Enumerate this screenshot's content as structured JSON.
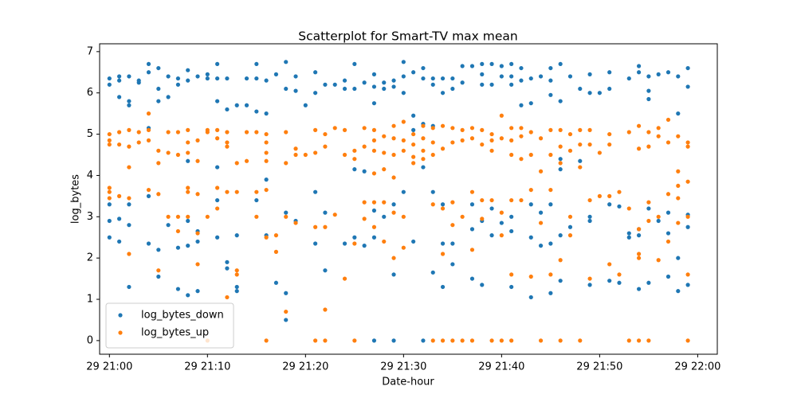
{
  "chart_data": {
    "type": "scatter",
    "title": "Scatterplot for Smart-TV max mean",
    "x_label": "Date-hour",
    "y_label": "log_bytes",
    "xlim": [
      "29 20:59",
      "29 22:02"
    ],
    "xticks": [
      "29 21:00",
      "29 21:10",
      "29 21:20",
      "29 21:30",
      "29 21:40",
      "29 21:50",
      "29 22:00"
    ],
    "ylim": [
      -0.33,
      7.19
    ],
    "yticks": [
      0,
      1,
      2,
      3,
      4,
      5,
      6,
      7
    ],
    "grid": false,
    "legend": "lower left",
    "series": [
      {
        "name": "log_bytes_down",
        "color": "#1f77b4",
        "x": [
          "29 21:00",
          "29 21:00",
          "29 21:00",
          "29 21:00",
          "29 21:00",
          "29 21:01",
          "29 21:01",
          "29 21:01",
          "29 21:01",
          "29 21:01",
          "29 21:02",
          "29 21:02",
          "29 21:02",
          "29 21:02",
          "29 21:02",
          "29 21:02",
          "29 21:03",
          "29 21:03",
          "29 21:04",
          "29 21:04",
          "29 21:04",
          "29 21:04",
          "29 21:04",
          "29 21:05",
          "29 21:05",
          "29 21:05",
          "29 21:05",
          "29 21:05",
          "29 21:06",
          "29 21:06",
          "29 21:06",
          "29 21:07",
          "29 21:07",
          "29 21:07",
          "29 21:07",
          "29 21:08",
          "29 21:08",
          "29 21:08",
          "29 21:08",
          "29 21:08",
          "29 21:08",
          "29 21:09",
          "29 21:09",
          "29 21:09",
          "29 21:09",
          "29 21:10",
          "29 21:10",
          "29 21:11",
          "29 21:11",
          "29 21:11",
          "29 21:11",
          "29 21:11",
          "29 21:11",
          "29 21:12",
          "29 21:12",
          "29 21:12",
          "29 21:12",
          "29 21:13",
          "29 21:13",
          "29 21:13",
          "29 21:13",
          "29 21:14",
          "29 21:14",
          "29 21:15",
          "29 21:15",
          "29 21:15",
          "29 21:15",
          "29 21:16",
          "29 21:16",
          "29 21:16",
          "29 21:16",
          "29 21:17",
          "29 21:17",
          "29 21:18",
          "29 21:18",
          "29 21:18",
          "29 21:18",
          "29 21:18",
          "29 21:19",
          "29 21:19",
          "29 21:19",
          "29 21:20",
          "29 21:21",
          "29 21:21",
          "29 21:21",
          "29 21:21",
          "29 21:22",
          "29 21:22",
          "29 21:22",
          "29 21:23",
          "29 21:24",
          "29 21:24",
          "29 21:24",
          "29 21:25",
          "29 21:25",
          "29 21:25",
          "29 21:25",
          "29 21:26",
          "29 21:26",
          "29 21:26",
          "29 21:27",
          "29 21:27",
          "29 21:27",
          "29 21:27",
          "29 21:27",
          "29 21:27",
          "29 21:28",
          "29 21:28",
          "29 21:28",
          "29 21:29",
          "29 21:29",
          "29 21:29",
          "29 21:29",
          "29 21:29",
          "29 21:30",
          "29 21:30",
          "29 21:30",
          "29 21:30",
          "29 21:31",
          "29 21:31",
          "29 21:31",
          "29 21:31",
          "29 21:32",
          "29 21:32",
          "29 21:32",
          "29 21:32",
          "29 21:32",
          "29 21:33",
          "29 21:33",
          "29 21:33",
          "29 21:33",
          "29 21:33",
          "29 21:34",
          "29 21:34",
          "29 21:34",
          "29 21:34",
          "29 21:34",
          "29 21:35",
          "29 21:35",
          "29 21:35",
          "29 21:35",
          "29 21:36",
          "29 21:36",
          "29 21:37",
          "29 21:37",
          "29 21:37",
          "29 21:37",
          "29 21:38",
          "29 21:38",
          "29 21:38",
          "29 21:38",
          "29 21:38",
          "29 21:39",
          "29 21:39",
          "29 21:39",
          "29 21:39",
          "29 21:40",
          "29 21:40",
          "29 21:40",
          "29 21:41",
          "29 21:41",
          "29 21:41",
          "29 21:41",
          "29 21:41",
          "29 21:41",
          "29 21:42",
          "29 21:42",
          "29 21:42",
          "29 21:43",
          "29 21:43",
          "29 21:43",
          "29 21:43",
          "29 21:43",
          "29 21:44",
          "29 21:44",
          "29 21:44",
          "29 21:45",
          "29 21:45",
          "29 21:45",
          "29 21:45",
          "29 21:45",
          "29 21:45",
          "29 21:46",
          "29 21:46",
          "29 21:46",
          "29 21:46",
          "29 21:46",
          "29 21:46",
          "29 21:47",
          "29 21:47",
          "29 21:48",
          "29 21:48",
          "29 21:49",
          "29 21:49",
          "29 21:49",
          "29 21:49",
          "29 21:49",
          "29 21:50",
          "29 21:51",
          "29 21:51",
          "29 21:51",
          "29 21:51",
          "29 21:52",
          "29 21:52",
          "29 21:53",
          "29 21:53",
          "29 21:53",
          "29 21:54",
          "29 21:54",
          "29 21:54",
          "29 21:54",
          "29 21:54",
          "29 21:55",
          "29 21:55",
          "29 21:55",
          "29 21:55",
          "29 21:55",
          "29 21:56",
          "29 21:56",
          "29 21:57",
          "29 21:57",
          "29 21:57",
          "29 21:57",
          "29 21:58",
          "29 21:58",
          "29 21:58",
          "29 21:58",
          "29 21:59",
          "29 21:59",
          "29 21:59",
          "29 21:59",
          "29 21:59"
        ],
        "values": [
          6.35,
          6.2,
          3.3,
          2.9,
          2.5,
          6.4,
          6.3,
          5.9,
          2.95,
          2.4,
          6.4,
          5.8,
          5.7,
          3.3,
          2.8,
          1.3,
          6.25,
          6.3,
          6.7,
          6.5,
          5.15,
          3.5,
          2.35,
          6.6,
          6.1,
          5.8,
          2.2,
          1.55,
          6.4,
          5.9,
          2.8,
          6.35,
          6.2,
          2.25,
          1.25,
          6.55,
          6.3,
          4.35,
          2.9,
          2.3,
          1.1,
          6.4,
          2.65,
          2.4,
          1.2,
          6.45,
          6.35,
          6.7,
          6.35,
          5.8,
          4.2,
          3.4,
          2.5,
          6.35,
          5.6,
          1.9,
          1.75,
          5.7,
          2.55,
          1.3,
          1.2,
          6.35,
          5.7,
          6.7,
          6.35,
          5.55,
          3.4,
          6.3,
          5.5,
          3.9,
          2.55,
          6.45,
          1.4,
          6.75,
          6.1,
          3.1,
          1.15,
          0.5,
          6.4,
          6.05,
          2.9,
          5.7,
          6.5,
          6.0,
          3.6,
          2.35,
          6.2,
          3.1,
          1.7,
          6.2,
          6.3,
          6.1,
          2.35,
          6.7,
          6.1,
          4.15,
          2.5,
          6.25,
          4.1,
          2.3,
          6.45,
          6.15,
          5.75,
          3.15,
          2.5,
          0,
          6.25,
          6.1,
          3.0,
          6.3,
          6.15,
          3.3,
          1.6,
          0,
          6.75,
          6.4,
          6.0,
          3.6,
          6.5,
          5.45,
          5.1,
          2.4,
          6.6,
          6.35,
          5.25,
          4.2,
          0,
          6.35,
          6.2,
          5.2,
          3.6,
          1.65,
          6.35,
          6.0,
          3.3,
          2.35,
          1.3,
          6.35,
          6.1,
          2.35,
          1.85,
          6.65,
          6.25,
          6.65,
          3.3,
          2.7,
          1.5,
          6.7,
          6.45,
          6.2,
          2.9,
          1.35,
          6.7,
          6.2,
          3.2,
          2.55,
          6.65,
          6.4,
          2.85,
          6.7,
          6.4,
          6.2,
          3.0,
          2.65,
          1.3,
          6.6,
          6.3,
          5.7,
          6.35,
          5.75,
          3.3,
          2.5,
          1.05,
          6.4,
          3.1,
          2.3,
          6.6,
          6.3,
          5.95,
          3.3,
          2.35,
          1.15,
          6.7,
          5.8,
          4.4,
          4.15,
          2.55,
          1.45,
          6.4,
          2.75,
          6.1,
          4.35,
          6.45,
          6.0,
          3.0,
          2.9,
          1.35,
          6.0,
          6.5,
          6.1,
          3.3,
          1.45,
          3.25,
          1.4,
          6.35,
          2.6,
          2.5,
          6.65,
          6.5,
          2.7,
          2.55,
          1.25,
          6.4,
          6.05,
          5.85,
          3.2,
          1.4,
          6.45,
          2.9,
          6.5,
          3.1,
          2.6,
          1.55,
          6.4,
          5.5,
          2.0,
          1.2,
          6.6,
          6.15,
          3.05,
          2.75,
          1.35
        ]
      },
      {
        "name": "log_bytes_up",
        "color": "#ff7f0e",
        "x": [
          "29 21:00",
          "29 21:00",
          "29 21:00",
          "29 21:00",
          "29 21:00",
          "29 21:00",
          "29 21:01",
          "29 21:01",
          "29 21:01",
          "29 21:02",
          "29 21:02",
          "29 21:02",
          "29 21:02",
          "29 21:02",
          "29 21:03",
          "29 21:03",
          "29 21:04",
          "29 21:04",
          "29 21:04",
          "29 21:04",
          "29 21:05",
          "29 21:05",
          "29 21:05",
          "29 21:05",
          "29 21:06",
          "29 21:06",
          "29 21:06",
          "29 21:07",
          "29 21:07",
          "29 21:07",
          "29 21:07",
          "29 21:08",
          "29 21:08",
          "29 21:08",
          "29 21:08",
          "29 21:08",
          "29 21:08",
          "29 21:09",
          "29 21:09",
          "29 21:09",
          "29 21:09",
          "29 21:09",
          "29 21:10",
          "29 21:10",
          "29 21:10",
          "29 21:10",
          "29 21:11",
          "29 21:11",
          "29 21:11",
          "29 21:11",
          "29 21:12",
          "29 21:12",
          "29 21:12",
          "29 21:12",
          "29 21:12",
          "29 21:13",
          "29 21:13",
          "29 21:13",
          "29 21:13",
          "29 21:14",
          "29 21:14",
          "29 21:15",
          "29 21:15",
          "29 21:15",
          "29 21:16",
          "29 21:16",
          "29 21:16",
          "29 21:16",
          "29 21:16",
          "29 21:16",
          "29 21:16",
          "29 21:17",
          "29 21:17",
          "29 21:18",
          "29 21:18",
          "29 21:18",
          "29 21:18",
          "29 21:19",
          "29 21:19",
          "29 21:19",
          "29 21:20",
          "29 21:21",
          "29 21:21",
          "29 21:21",
          "29 21:21",
          "29 21:22",
          "29 21:22",
          "29 21:22",
          "29 21:22",
          "29 21:22",
          "29 21:23",
          "29 21:23",
          "29 21:24",
          "29 21:24",
          "29 21:24",
          "29 21:25",
          "29 21:25",
          "29 21:25",
          "29 21:25",
          "29 21:26",
          "29 21:26",
          "29 21:26",
          "29 21:26",
          "29 21:27",
          "29 21:27",
          "29 21:27",
          "29 21:27",
          "29 21:27",
          "29 21:27",
          "29 21:28",
          "29 21:28",
          "29 21:28",
          "29 21:28",
          "29 21:28",
          "29 21:29",
          "29 21:29",
          "29 21:29",
          "29 21:29",
          "29 21:29",
          "29 21:29",
          "29 21:30",
          "29 21:30",
          "29 21:30",
          "29 21:30",
          "29 21:30",
          "29 21:31",
          "29 21:31",
          "29 21:31",
          "29 21:31",
          "29 21:32",
          "29 21:32",
          "29 21:32",
          "29 21:32",
          "29 21:33",
          "29 21:33",
          "29 21:33",
          "29 21:33",
          "29 21:33",
          "29 21:34",
          "29 21:34",
          "29 21:34",
          "29 21:34",
          "29 21:34",
          "29 21:35",
          "29 21:35",
          "29 21:35",
          "29 21:35",
          "29 21:35",
          "29 21:36",
          "29 21:36",
          "29 21:36",
          "29 21:36",
          "29 21:37",
          "29 21:37",
          "29 21:37",
          "29 21:37",
          "29 21:37",
          "29 21:38",
          "29 21:38",
          "29 21:38",
          "29 21:38",
          "29 21:39",
          "29 21:39",
          "29 21:39",
          "29 21:39",
          "29 21:39",
          "29 21:40",
          "29 21:40",
          "29 21:40",
          "29 21:40",
          "29 21:40",
          "29 21:41",
          "29 21:41",
          "29 21:41",
          "29 21:41",
          "29 21:41",
          "29 21:41",
          "29 21:42",
          "29 21:42",
          "29 21:42",
          "29 21:42",
          "29 21:43",
          "29 21:43",
          "29 21:43",
          "29 21:43",
          "29 21:44",
          "29 21:44",
          "29 21:44",
          "29 21:44",
          "29 21:45",
          "29 21:45",
          "29 21:45",
          "29 21:45",
          "29 21:46",
          "29 21:46",
          "29 21:46",
          "29 21:46",
          "29 21:46",
          "29 21:47",
          "29 21:47",
          "29 21:47",
          "29 21:47",
          "29 21:48",
          "29 21:48",
          "29 21:48",
          "29 21:48",
          "29 21:49",
          "29 21:49",
          "29 21:49",
          "29 21:49",
          "29 21:50",
          "29 21:50",
          "29 21:51",
          "29 21:51",
          "29 21:51",
          "29 21:51",
          "29 21:52",
          "29 21:52",
          "29 21:53",
          "29 21:53",
          "29 21:53",
          "29 21:54",
          "29 21:54",
          "29 21:54",
          "29 21:54",
          "29 21:54",
          "29 21:54",
          "29 21:55",
          "29 21:55",
          "29 21:55",
          "29 21:55",
          "29 21:55",
          "29 21:56",
          "29 21:56",
          "29 21:56",
          "29 21:56",
          "29 21:57",
          "29 21:57",
          "29 21:57",
          "29 21:57",
          "29 21:58",
          "29 21:58",
          "29 21:58",
          "29 21:58",
          "29 21:58",
          "29 21:59",
          "29 21:59",
          "29 21:59",
          "29 21:59",
          "29 21:59",
          "29 21:59"
        ],
        "values": [
          5.0,
          4.85,
          4.75,
          3.7,
          3.6,
          3.45,
          5.05,
          4.75,
          3.5,
          5.1,
          4.7,
          4.2,
          3.45,
          2.1,
          4.8,
          5.05,
          5.5,
          5.1,
          4.85,
          3.65,
          4.6,
          4.3,
          3.55,
          1.7,
          5.05,
          4.55,
          3.0,
          5.05,
          4.5,
          3.0,
          2.65,
          5.1,
          4.8,
          4.55,
          3.7,
          3.6,
          3.0,
          4.85,
          4.35,
          3.55,
          2.6,
          1.85,
          5.1,
          5.05,
          3.0,
          0,
          5.1,
          4.9,
          3.7,
          3.2,
          5.05,
          4.8,
          4.7,
          3.6,
          1.05,
          4.3,
          3.6,
          1.7,
          1.6,
          5.05,
          4.35,
          5.05,
          3.6,
          3.0,
          5.0,
          4.8,
          4.55,
          4.35,
          3.65,
          2.5,
          0,
          2.55,
          2.15,
          5.05,
          4.3,
          3.0,
          0.7,
          4.65,
          4.5,
          2.85,
          4.5,
          5.1,
          4.55,
          2.75,
          0,
          5.0,
          4.7,
          2.75,
          0.75,
          0,
          5.15,
          3.05,
          5.1,
          4.5,
          1.5,
          4.6,
          4.4,
          2.35,
          0,
          5.15,
          4.7,
          3.35,
          2.95,
          5.1,
          4.85,
          4.6,
          4.05,
          3.35,
          2.75,
          4.95,
          4.55,
          4.15,
          3.35,
          2.4,
          5.2,
          4.9,
          4.5,
          3.95,
          3.1,
          2.0,
          5.3,
          4.85,
          4.6,
          3.0,
          2.25,
          5.0,
          4.75,
          4.3,
          4.45,
          5.2,
          4.9,
          4.6,
          4.4,
          5.15,
          4.8,
          4.5,
          3.3,
          0,
          5.2,
          4.65,
          3.2,
          2.1,
          0,
          5.15,
          4.8,
          3.35,
          2.8,
          0,
          5.1,
          4.85,
          3.0,
          0,
          5.15,
          4.9,
          3.6,
          2.2,
          0,
          5.1,
          4.75,
          3.4,
          2.95,
          5.0,
          4.85,
          4.6,
          3.4,
          0,
          5.45,
          4.9,
          3.1,
          2.55,
          0,
          5.15,
          4.85,
          4.5,
          3.4,
          1.6,
          0,
          5.15,
          4.95,
          4.4,
          3.4,
          5.05,
          4.5,
          3.65,
          1.55,
          4.9,
          4.1,
          2.85,
          0,
          5.1,
          4.5,
          3.65,
          1.6,
          5.1,
          4.7,
          4.3,
          1.95,
          0,
          5.0,
          4.6,
          3.0,
          2.55,
          5.1,
          4.75,
          4.2,
          0,
          5.1,
          4.75,
          3.4,
          1.5,
          4.55,
          3.5,
          5.0,
          4.75,
          3.5,
          1.85,
          3.6,
          1.6,
          5.05,
          3.2,
          0,
          5.2,
          4.65,
          2.7,
          2.1,
          2.0,
          0,
          5.05,
          4.7,
          3.35,
          2.9,
          0,
          5.15,
          4.95,
          3.0,
          1.95,
          5.35,
          4.8,
          3.55,
          2.4,
          4.95,
          4.1,
          3.75,
          3.45,
          2.85,
          4.8,
          4.7,
          3.85,
          3.0,
          1.6,
          0
        ]
      }
    ]
  }
}
